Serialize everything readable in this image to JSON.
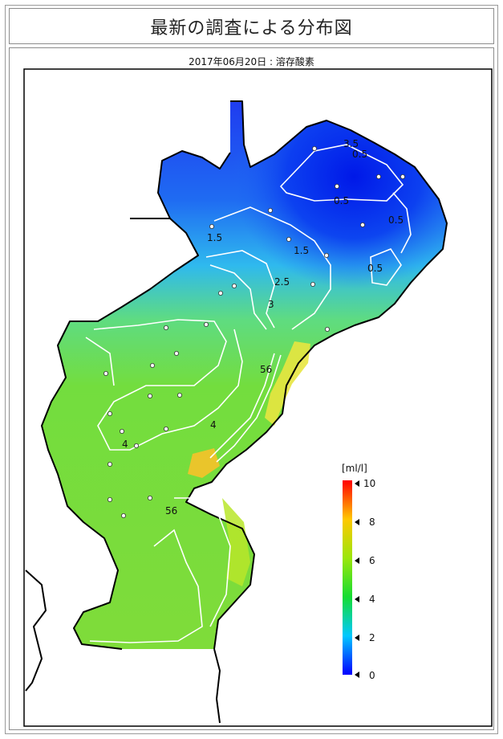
{
  "header": {
    "title": "最新の調査による分布図"
  },
  "map": {
    "subtitle": "2017年06月20日 : 溶存酸素",
    "contour_labels": {
      "c1": "3.5",
      "c2": "0.5",
      "c3": "0.5",
      "c4": "0.5",
      "c5": "0.5",
      "c6": "1.5",
      "c7": "1.5",
      "c8": "2.5",
      "c9": "3",
      "c10": "56",
      "c11": "4",
      "c12": "4",
      "c13": "56"
    }
  },
  "legend": {
    "unit": "[ml/l]",
    "ticks": [
      "10",
      "8",
      "6",
      "4",
      "2",
      "0"
    ],
    "colors": {
      "c0": "#0000ff",
      "c2": "#00c8ff",
      "c4": "#14dc32",
      "c6": "#9be60a",
      "c8": "#ffc800",
      "c10": "#ff0000"
    }
  }
}
